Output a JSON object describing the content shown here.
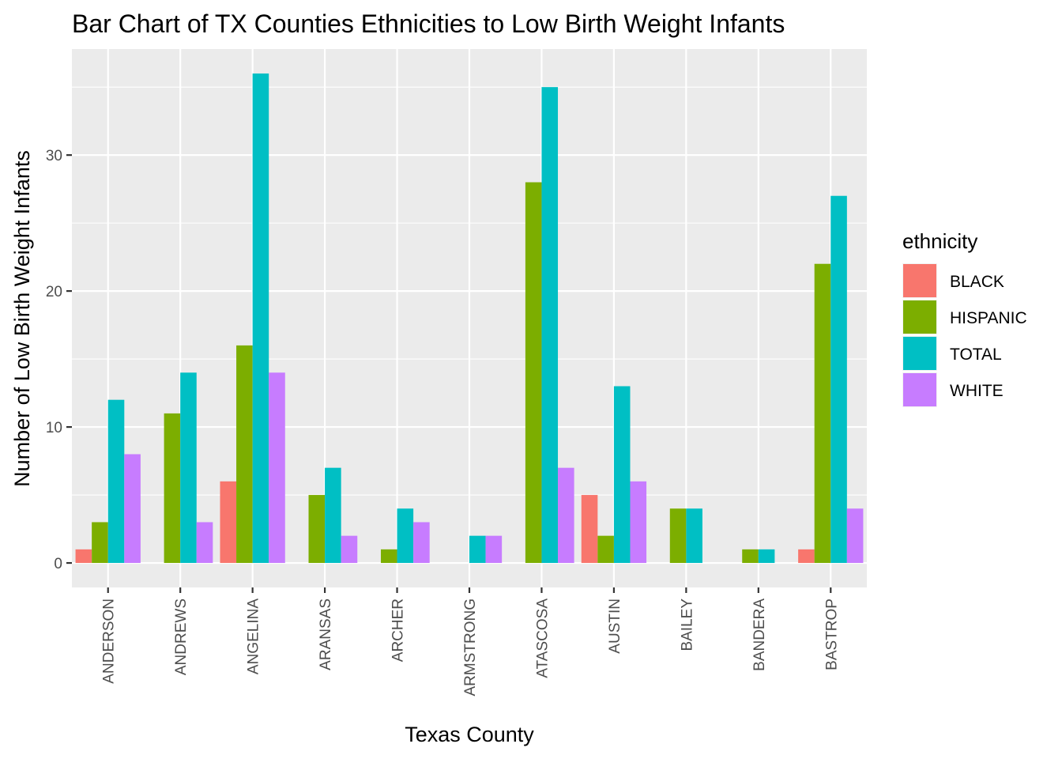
{
  "chart_data": {
    "type": "bar",
    "title": "Bar Chart of TX Counties Ethnicities to Low Birth Weight Infants",
    "xlabel": "Texas County",
    "ylabel": "Number of Low Birth Weight Infants",
    "categories": [
      "ANDERSON",
      "ANDREWS",
      "ANGELINA",
      "ARANSAS",
      "ARCHER",
      "ARMSTRONG",
      "ATASCOSA",
      "AUSTIN",
      "BAILEY",
      "BANDERA",
      "BASTROP"
    ],
    "series": [
      {
        "name": "BLACK",
        "color": "#F8766D",
        "values": [
          1,
          null,
          6,
          null,
          null,
          null,
          null,
          5,
          null,
          null,
          1
        ]
      },
      {
        "name": "HISPANIC",
        "color": "#7CAE00",
        "values": [
          3,
          11,
          16,
          5,
          1,
          null,
          28,
          2,
          4,
          1,
          22
        ]
      },
      {
        "name": "TOTAL",
        "color": "#00BFC4",
        "values": [
          12,
          14,
          36,
          7,
          4,
          2,
          35,
          13,
          4,
          1,
          27
        ]
      },
      {
        "name": "WHITE",
        "color": "#C77CFF",
        "values": [
          8,
          3,
          14,
          2,
          3,
          2,
          7,
          6,
          null,
          null,
          4
        ]
      }
    ],
    "ylim": [
      -1.8,
      37.8
    ],
    "yticks": [
      0,
      10,
      20,
      30
    ],
    "legend": {
      "title": "ethnicity",
      "position": "right"
    },
    "grid": true,
    "panel_background": "#EBEBEB",
    "grid_color": "#FFFFFF"
  }
}
